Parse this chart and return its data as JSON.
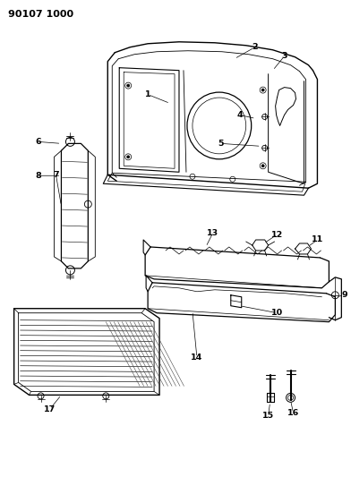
{
  "diagram_id": "90107 1000",
  "background_color": "#ffffff",
  "line_color": "#000000",
  "label_color": "#000000",
  "fig_width": 3.92,
  "fig_height": 5.33,
  "dpi": 100
}
